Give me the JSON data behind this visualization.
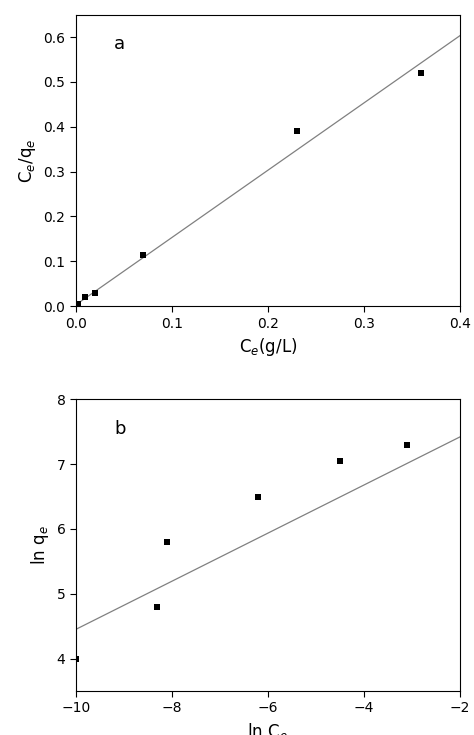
{
  "plot_a": {
    "x_data": [
      0.002,
      0.01,
      0.02,
      0.07,
      0.23,
      0.36
    ],
    "y_data": [
      0.005,
      0.02,
      0.03,
      0.115,
      0.39,
      0.52
    ],
    "line_x": [
      0.0,
      0.4
    ],
    "line_y": [
      0.003,
      0.603
    ],
    "xlabel": "C$_e$(g/L)",
    "ylabel": "C$_e$/q$_e$",
    "xlim": [
      0,
      0.4
    ],
    "ylim": [
      0,
      0.65
    ],
    "xticks": [
      0.0,
      0.1,
      0.2,
      0.3,
      0.4
    ],
    "yticks": [
      0.0,
      0.1,
      0.2,
      0.3,
      0.4,
      0.5,
      0.6
    ],
    "label": "a"
  },
  "plot_b": {
    "x_data": [
      -10.0,
      -8.3,
      -8.1,
      -6.2,
      -4.5,
      -3.1
    ],
    "y_data": [
      4.0,
      4.8,
      5.8,
      6.5,
      7.05,
      7.3
    ],
    "line_x": [
      -10.0,
      -2.0
    ],
    "line_y": [
      4.45,
      7.42
    ],
    "xlabel": "ln C$_e$",
    "ylabel": "ln q$_e$",
    "xlim": [
      -10,
      -2
    ],
    "ylim": [
      3.5,
      8.0
    ],
    "xticks": [
      -10,
      -8,
      -6,
      -4,
      -2
    ],
    "yticks": [
      4,
      5,
      6,
      7,
      8
    ],
    "label": "b"
  },
  "marker": "s",
  "marker_size": 5,
  "marker_color": "black",
  "line_color": "#808080",
  "line_width": 0.9,
  "bg_color": "white",
  "label_fontsize": 12,
  "tick_fontsize": 10,
  "panel_label_fontsize": 13
}
